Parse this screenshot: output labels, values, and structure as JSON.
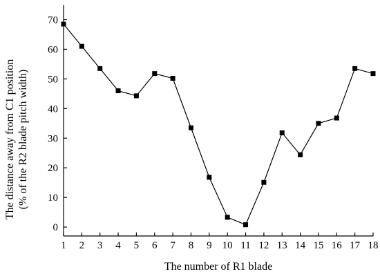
{
  "chart_data": {
    "type": "line",
    "title": "",
    "xlabel": "The number of R1 blade",
    "ylabel_line1": "The distance away from C1 position",
    "ylabel_line2": "(% of the R2 blade pitch width)",
    "xlim": [
      1,
      18
    ],
    "ylim": [
      -3,
      75
    ],
    "xticks": [
      1,
      2,
      3,
      4,
      5,
      6,
      7,
      8,
      9,
      10,
      11,
      12,
      13,
      14,
      15,
      16,
      17,
      18
    ],
    "yticks": [
      0,
      10,
      20,
      30,
      40,
      50,
      60,
      70
    ],
    "grid": false,
    "marker": "square",
    "series": [
      {
        "x": [
          1,
          2,
          3,
          4,
          5,
          6,
          7,
          8,
          9,
          10,
          11,
          12,
          13,
          14,
          15,
          16,
          17,
          18
        ],
        "values": [
          68.5,
          61,
          53.5,
          46,
          44.3,
          51.8,
          50.2,
          33.5,
          16.8,
          3.3,
          0.8,
          15.1,
          31.8,
          24.4,
          35,
          36.8,
          53.5,
          51.8
        ]
      }
    ]
  }
}
